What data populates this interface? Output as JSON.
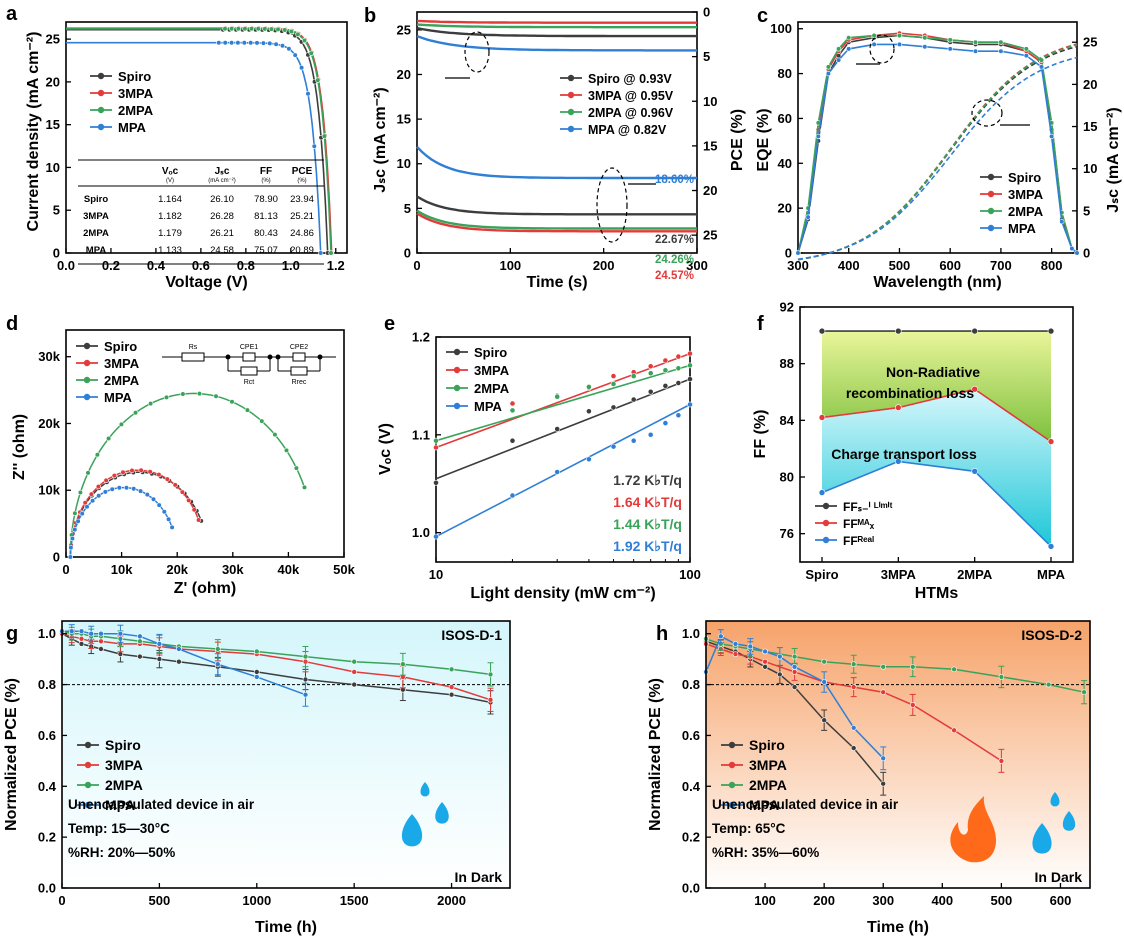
{
  "colors": {
    "spiro": "#3d3d3d",
    "p3": "#e33a3a",
    "p2": "#3aa35a",
    "mpa": "#2f7fd6",
    "axis": "#000000"
  },
  "panels": {
    "a": {
      "letter": "a",
      "xlabel": "Voltage (V)",
      "ylabel": "Current density (mA cm⁻²)",
      "xlim": [
        0.0,
        1.25
      ],
      "ylim": [
        0,
        27
      ],
      "xticks": [
        "0.0",
        "0.2",
        "0.4",
        "0.6",
        "0.8",
        "1.0",
        "1.2"
      ],
      "yticks": [
        "0",
        "5",
        "10",
        "15",
        "20",
        "25"
      ],
      "legend": [
        "Spiro",
        "3MPA",
        "2MPA",
        "MPA"
      ],
      "table": {
        "headers": [
          "",
          "Vₒᴄ",
          "Jₛᴄ",
          "FF",
          "PCE"
        ],
        "units": [
          "",
          "(V)",
          "(mA cm⁻²)",
          "(%)",
          "(%)"
        ],
        "rows": [
          [
            "Spiro",
            "1.164",
            "26.10",
            "78.90",
            "23.94"
          ],
          [
            "3MPA",
            "1.182",
            "26.28",
            "81.13",
            "25.21"
          ],
          [
            "2MPA",
            "1.179",
            "26.21",
            "80.43",
            "24.86"
          ],
          [
            "MPA",
            "1.133",
            "24.58",
            "75.07",
            "20.89"
          ]
        ]
      }
    },
    "b": {
      "letter": "b",
      "xlabel": "Time (s)",
      "ylabel": "Jₛᴄ (mA cm⁻²)",
      "ylabel_right": "PCE (%)",
      "xticks": [
        "0",
        "100",
        "200",
        "300"
      ],
      "yticks": [
        "0",
        "5",
        "10",
        "15",
        "20",
        "25"
      ],
      "yticks_right": [
        "0",
        "5",
        "10",
        "15",
        "20",
        "25"
      ],
      "legend": [
        "Spiro    @ 0.93V",
        "3MPA    @ 0.95V",
        "2MPA    @ 0.96V",
        "MPA      @ 0.82V"
      ],
      "labels": [
        "18.60%",
        "22.67%",
        "24.26%",
        "24.57%"
      ]
    },
    "c": {
      "letter": "c",
      "xlabel": "Wavelength (nm)",
      "ylabel": "EQE (%)",
      "ylabel_right": "Jₛᴄ (mA cm⁻²)",
      "xticks": [
        "300",
        "400",
        "500",
        "600",
        "700",
        "800"
      ],
      "yticks": [
        "0",
        "20",
        "40",
        "60",
        "80",
        "100"
      ],
      "yticks_right": [
        "0",
        "5",
        "10",
        "15",
        "20",
        "25"
      ],
      "legend": [
        "Spiro",
        "3MPA",
        "2MPA",
        "MPA"
      ]
    },
    "d": {
      "letter": "d",
      "xlabel": "Z' (ohm)",
      "ylabel": "Z'' (ohm)",
      "xticks": [
        "0",
        "10k",
        "20k",
        "30k",
        "40k",
        "50k"
      ],
      "yticks": [
        "0",
        "10k",
        "20k",
        "30k"
      ],
      "legend": [
        "Spiro",
        "3MPA",
        "2MPA",
        "MPA"
      ],
      "circuit": [
        "Rs",
        "CPE1",
        "Rct",
        "CPE2",
        "Rrec"
      ]
    },
    "e": {
      "letter": "e",
      "xlabel": "Light density (mW cm⁻²)",
      "ylabel": "Vₒᴄ (V)",
      "xticks": [
        "10",
        "100"
      ],
      "yticks": [
        "1.0",
        "1.1",
        "1.2"
      ],
      "legend": [
        "Spiro",
        "3MPA",
        "2MPA",
        "MPA"
      ],
      "slopes": [
        "1.72 K♭T/q",
        "1.64 K♭T/q",
        "1.44 K♭T/q",
        "1.92 K♭T/q"
      ]
    },
    "f": {
      "letter": "f",
      "xlabel": "HTMs",
      "ylabel": "FF (%)",
      "xticks": [
        "Spiro",
        "3MPA",
        "2MPA",
        "MPA"
      ],
      "yticks": [
        "76",
        "80",
        "84",
        "88",
        "92"
      ],
      "region1": "Non-Radiative",
      "region1b": "recombination loss",
      "region2": "Charge transport loss",
      "legend": [
        "FFₛ₋ⁱ ᴸⁱᵐⁱᵗ",
        "FFᴹᴬₓ",
        "FFᴿᵉᵃˡ"
      ]
    },
    "g": {
      "letter": "g",
      "xlabel": "Time (h)",
      "ylabel": "Normalized PCE (%)",
      "xticks": [
        "0",
        "500",
        "1000",
        "1500",
        "2000"
      ],
      "yticks": [
        "0.0",
        "0.2",
        "0.4",
        "0.6",
        "0.8",
        "1.0"
      ],
      "legend": [
        "Spiro",
        "3MPA",
        "2MPA",
        "MPA"
      ],
      "protocol": "ISOS-D-1",
      "note1": "Unencapsulated device in air",
      "note2": "Temp: 15—30°C",
      "note3": "%RH: 20%—50%",
      "dark": "In Dark"
    },
    "h": {
      "letter": "h",
      "xlabel": "Time (h)",
      "ylabel": "Normalized PCE (%)",
      "xticks": [
        "100",
        "200",
        "300",
        "400",
        "500",
        "600"
      ],
      "yticks": [
        "0.0",
        "0.2",
        "0.4",
        "0.6",
        "0.8",
        "1.0"
      ],
      "legend": [
        "Spiro",
        "3MPA",
        "2MPA",
        "MPA"
      ],
      "protocol": "ISOS-D-2",
      "note1": "Unencapsulated device in air",
      "note2": "Temp: 65°C",
      "note3": "%RH: 35%—60%",
      "dark": "In Dark"
    }
  },
  "chart_data": [
    {
      "panel": "a",
      "type": "line",
      "title": "",
      "xlabel": "Voltage (V)",
      "ylabel": "Current density (mA cm-2)",
      "xlim": [
        0,
        1.25
      ],
      "ylim": [
        0,
        27
      ],
      "series": [
        {
          "name": "Spiro",
          "voc": 1.164,
          "jsc": 26.1
        },
        {
          "name": "3MPA",
          "voc": 1.182,
          "jsc": 26.28
        },
        {
          "name": "2MPA",
          "voc": 1.179,
          "jsc": 26.21
        },
        {
          "name": "MPA",
          "voc": 1.133,
          "jsc": 24.58
        }
      ]
    },
    {
      "panel": "b",
      "type": "line",
      "xlabel": "Time (s)",
      "xlim": [
        0,
        300
      ],
      "ylim": [
        0,
        27
      ],
      "series": [
        {
          "name": "Spiro",
          "jsc": 25.2,
          "pce": 22.67,
          "jsc_end": 24.3
        },
        {
          "name": "3MPA",
          "jsc": 26.0,
          "pce": 24.57,
          "jsc_end": 25.8
        },
        {
          "name": "2MPA",
          "jsc": 25.6,
          "pce": 24.26,
          "jsc_end": 25.3
        },
        {
          "name": "MPA",
          "jsc": 24.3,
          "pce": 18.6,
          "jsc_end": 22.7
        }
      ]
    },
    {
      "panel": "c",
      "type": "line",
      "xlabel": "Wavelength (nm)",
      "ylabel": "EQE (%)",
      "xlim": [
        300,
        850
      ],
      "ylim": [
        0,
        103
      ],
      "x": [
        300,
        320,
        340,
        360,
        380,
        400,
        450,
        500,
        550,
        600,
        650,
        700,
        750,
        780,
        800,
        820,
        840,
        850
      ],
      "series": [
        {
          "name": "Spiro",
          "values": [
            0,
            15,
            50,
            80,
            88,
            94,
            96,
            97,
            96,
            94,
            93,
            93,
            90,
            85,
            55,
            15,
            2,
            0
          ]
        },
        {
          "name": "3MPA",
          "values": [
            0,
            18,
            55,
            82,
            90,
            95,
            97,
            98,
            97,
            95,
            94,
            94,
            90,
            85,
            58,
            18,
            2,
            0
          ]
        },
        {
          "name": "2MPA",
          "values": [
            0,
            20,
            58,
            83,
            91,
            96,
            97,
            97,
            96,
            95,
            94,
            94,
            91,
            86,
            58,
            18,
            2,
            0
          ]
        },
        {
          "name": "MPA",
          "values": [
            0,
            16,
            52,
            80,
            86,
            91,
            93,
            93,
            92,
            91,
            90,
            90,
            88,
            83,
            52,
            14,
            2,
            0
          ]
        }
      ],
      "integrated_jsc": [
        {
          "name": "Spiro",
          "value": 24.6
        },
        {
          "name": "3MPA",
          "value": 24.9
        },
        {
          "name": "2MPA",
          "value": 24.8
        },
        {
          "name": "MPA",
          "value": 23.3
        }
      ]
    },
    {
      "panel": "d",
      "type": "scatter",
      "xlabel": "Z' (ohm)",
      "ylabel": "Z'' (ohm)",
      "xlim": [
        0,
        50000
      ],
      "ylim": [
        0,
        34000
      ],
      "series": [
        {
          "name": "Spiro",
          "start": 800,
          "end": 25500,
          "peak": 12700
        },
        {
          "name": "3MPA",
          "start": 800,
          "end": 25000,
          "peak": 13000
        },
        {
          "name": "2MPA",
          "start": 800,
          "end": 45000,
          "peak": 24500
        },
        {
          "name": "MPA",
          "start": 800,
          "end": 20000,
          "peak": 10400
        }
      ]
    },
    {
      "panel": "e",
      "type": "scatter",
      "xlabel": "Light density (mW cm-2)",
      "ylabel": "Voc (V)",
      "xlim": [
        10,
        100
      ],
      "ylim": [
        0.97,
        1.2
      ],
      "x": [
        10,
        20,
        30,
        40,
        50,
        60,
        70,
        80,
        90,
        100
      ],
      "series": [
        {
          "name": "Spiro",
          "values": [
            1.051,
            1.094,
            1.106,
            1.124,
            1.128,
            1.136,
            1.144,
            1.15,
            1.153,
            1.157
          ],
          "slope": "1.72"
        },
        {
          "name": "3MPA",
          "values": [
            1.087,
            1.132,
            1.14,
            1.148,
            1.16,
            1.164,
            1.17,
            1.176,
            1.18,
            1.183
          ],
          "slope": "1.64"
        },
        {
          "name": "2MPA",
          "values": [
            1.094,
            1.125,
            1.139,
            1.149,
            1.152,
            1.16,
            1.163,
            1.166,
            1.168,
            1.171
          ],
          "slope": "1.44"
        },
        {
          "name": "MPA",
          "values": [
            0.996,
            1.038,
            1.062,
            1.075,
            1.088,
            1.094,
            1.1,
            1.112,
            1.12,
            1.131
          ],
          "slope": "1.92"
        }
      ]
    },
    {
      "panel": "f",
      "type": "line",
      "categories": [
        "Spiro",
        "3MPA",
        "2MPA",
        "MPA"
      ],
      "ylim": [
        74,
        92
      ],
      "series": [
        {
          "name": "FF S-Q limit",
          "values": [
            90.3,
            90.3,
            90.3,
            90.3
          ]
        },
        {
          "name": "FF MAX",
          "values": [
            84.2,
            84.9,
            86.2,
            82.5
          ]
        },
        {
          "name": "FF Real",
          "values": [
            78.9,
            81.1,
            80.4,
            75.1
          ]
        }
      ]
    },
    {
      "panel": "g",
      "type": "line",
      "xlim": [
        0,
        2300
      ],
      "ylim": [
        0,
        1.05
      ],
      "series": [
        {
          "name": "Spiro",
          "x": [
            0,
            50,
            100,
            150,
            200,
            300,
            400,
            500,
            600,
            800,
            1000,
            1250,
            1500,
            1750,
            2000,
            2200
          ],
          "values": [
            1.0,
            0.98,
            0.96,
            0.95,
            0.94,
            0.92,
            0.91,
            0.9,
            0.89,
            0.87,
            0.85,
            0.82,
            0.8,
            0.78,
            0.76,
            0.73
          ]
        },
        {
          "name": "3MPA",
          "x": [
            0,
            50,
            100,
            150,
            200,
            300,
            400,
            500,
            600,
            800,
            1000,
            1250,
            1500,
            1750,
            2000,
            2200
          ],
          "values": [
            1.0,
            0.99,
            0.98,
            0.97,
            0.97,
            0.96,
            0.96,
            0.95,
            0.94,
            0.93,
            0.92,
            0.89,
            0.85,
            0.83,
            0.79,
            0.74
          ]
        },
        {
          "name": "2MPA",
          "x": [
            0,
            50,
            100,
            150,
            200,
            300,
            400,
            500,
            600,
            800,
            1000,
            1250,
            1500,
            1750,
            2000,
            2200
          ],
          "values": [
            1.01,
            1.0,
            1.0,
            0.99,
            0.99,
            0.98,
            0.97,
            0.96,
            0.95,
            0.94,
            0.93,
            0.91,
            0.89,
            0.88,
            0.86,
            0.84
          ]
        },
        {
          "name": "MPA",
          "x": [
            0,
            50,
            100,
            150,
            200,
            300,
            400,
            500,
            600,
            800,
            1000,
            1250
          ],
          "values": [
            1.01,
            1.01,
            1.01,
            1.0,
            1.0,
            1.0,
            0.99,
            0.96,
            0.94,
            0.88,
            0.83,
            0.76
          ]
        }
      ]
    },
    {
      "panel": "h",
      "type": "line",
      "xlim": [
        0,
        650
      ],
      "ylim": [
        0,
        1.05
      ],
      "series": [
        {
          "name": "Spiro",
          "x": [
            0,
            25,
            50,
            75,
            100,
            125,
            150,
            200,
            250,
            300
          ],
          "values": [
            0.97,
            0.95,
            0.93,
            0.9,
            0.87,
            0.84,
            0.79,
            0.66,
            0.55,
            0.41
          ]
        },
        {
          "name": "3MPA",
          "x": [
            0,
            25,
            50,
            75,
            100,
            150,
            200,
            250,
            300,
            350,
            420,
            500
          ],
          "values": [
            0.96,
            0.94,
            0.92,
            0.91,
            0.89,
            0.85,
            0.81,
            0.79,
            0.77,
            0.72,
            0.62,
            0.5
          ]
        },
        {
          "name": "2MPA",
          "x": [
            0,
            25,
            50,
            75,
            100,
            150,
            200,
            250,
            300,
            350,
            420,
            500,
            580,
            640
          ],
          "values": [
            0.98,
            0.96,
            0.95,
            0.94,
            0.93,
            0.91,
            0.89,
            0.88,
            0.87,
            0.87,
            0.86,
            0.83,
            0.8,
            0.77
          ]
        },
        {
          "name": "MPA",
          "x": [
            0,
            25,
            50,
            75,
            100,
            125,
            150,
            200,
            250,
            300
          ],
          "values": [
            0.85,
            0.99,
            0.96,
            0.95,
            0.93,
            0.91,
            0.87,
            0.81,
            0.63,
            0.51
          ]
        }
      ]
    }
  ]
}
